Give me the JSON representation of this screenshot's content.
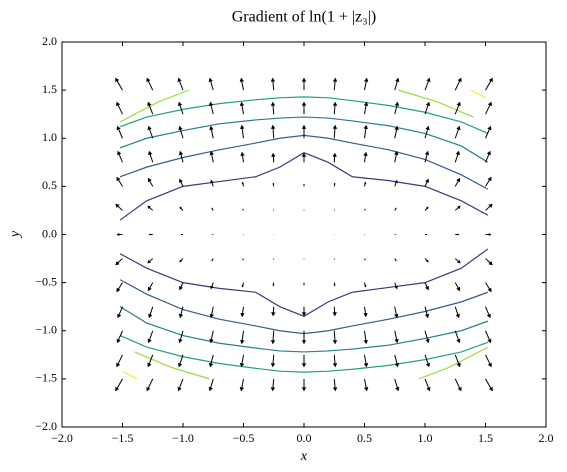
{
  "chart_data": {
    "type": "quiver",
    "title": "Gradient of ln(1 + |z₃|)",
    "xlabel": "x",
    "ylabel": "y",
    "xlim": [
      -2,
      2
    ],
    "ylim": [
      -2,
      2
    ],
    "xticks": [
      {
        "value": -2,
        "label": "−2.0"
      },
      {
        "value": -1.5,
        "label": "−1.5"
      },
      {
        "value": -1,
        "label": "−1.0"
      },
      {
        "value": -0.5,
        "label": "−0.5"
      },
      {
        "value": 0,
        "label": "0.0"
      },
      {
        "value": 0.5,
        "label": "0.5"
      },
      {
        "value": 1,
        "label": "1.0"
      },
      {
        "value": 1.5,
        "label": "1.5"
      },
      {
        "value": 2,
        "label": "2.0"
      }
    ],
    "yticks": [
      {
        "value": -2,
        "label": "−2.0"
      },
      {
        "value": -1.5,
        "label": "−1.5"
      },
      {
        "value": -1,
        "label": "−1.0"
      },
      {
        "value": -0.5,
        "label": "−0.5"
      },
      {
        "value": 0,
        "label": "0.0"
      },
      {
        "value": 0.5,
        "label": "0.5"
      },
      {
        "value": 1,
        "label": "1.0"
      },
      {
        "value": 1.5,
        "label": "1.5"
      },
      {
        "value": 2,
        "label": "2.0"
      }
    ],
    "arrow_color": "#000000",
    "x": [
      -1.5,
      -1.25,
      -1,
      -0.75,
      -0.5,
      -0.25,
      0,
      0.25,
      0.5,
      0.75,
      1,
      1.25,
      1.5
    ],
    "y": [
      -1.5,
      -1.25,
      -1,
      -0.75,
      -0.5,
      -0.25,
      0,
      0.25,
      0.5,
      0.75,
      1,
      1.25,
      1.5
    ],
    "u": [
      [
        -0.06,
        -0.05,
        -0.04,
        -0.03,
        -0.02,
        -0.01,
        0,
        0.01,
        0.02,
        0.03,
        0.04,
        0.05,
        0.06
      ],
      [
        -0.05,
        -0.04,
        -0.035,
        -0.026,
        -0.018,
        -0.009,
        0,
        0.009,
        0.018,
        0.026,
        0.035,
        0.04,
        0.05
      ],
      [
        -0.045,
        -0.037,
        -0.03,
        -0.022,
        -0.015,
        -0.008,
        0,
        0.008,
        0.015,
        0.022,
        0.03,
        0.037,
        0.045
      ],
      [
        -0.04,
        -0.031,
        -0.025,
        -0.019,
        -0.013,
        -0.006,
        0,
        0.006,
        0.013,
        0.019,
        0.025,
        0.031,
        0.04
      ],
      [
        -0.05,
        -0.04,
        -0.03,
        -0.02,
        -0.01,
        -0.005,
        0,
        0.005,
        0.01,
        0.02,
        0.03,
        0.04,
        0.05
      ],
      [
        -0.06,
        -0.045,
        -0.03,
        -0.015,
        -0.008,
        -0.004,
        0,
        0.004,
        0.008,
        0.015,
        0.03,
        0.045,
        0.06
      ],
      [
        -0.05,
        -0.035,
        -0.02,
        -0.01,
        -0.005,
        -0.002,
        0,
        0.002,
        0.005,
        0.01,
        0.02,
        0.035,
        0.05
      ],
      [
        -0.06,
        -0.045,
        -0.03,
        -0.015,
        -0.008,
        -0.004,
        0,
        0.004,
        0.008,
        0.015,
        0.03,
        0.045,
        0.06
      ],
      [
        -0.05,
        -0.04,
        -0.03,
        -0.02,
        -0.01,
        -0.005,
        0,
        0.005,
        0.01,
        0.02,
        0.03,
        0.04,
        0.05
      ],
      [
        -0.04,
        -0.031,
        -0.025,
        -0.019,
        -0.013,
        -0.006,
        0,
        0.006,
        0.013,
        0.019,
        0.025,
        0.031,
        0.04
      ],
      [
        -0.045,
        -0.037,
        -0.03,
        -0.022,
        -0.015,
        -0.008,
        0,
        0.008,
        0.015,
        0.022,
        0.03,
        0.037,
        0.045
      ],
      [
        -0.05,
        -0.04,
        -0.035,
        -0.026,
        -0.018,
        -0.009,
        0,
        0.009,
        0.018,
        0.026,
        0.035,
        0.04,
        0.05
      ],
      [
        -0.06,
        -0.05,
        -0.04,
        -0.03,
        -0.02,
        -0.01,
        0,
        0.01,
        0.02,
        0.03,
        0.04,
        0.05,
        0.06
      ]
    ],
    "v": [
      [
        -0.13,
        -0.13,
        -0.13,
        -0.13,
        -0.13,
        -0.13,
        -0.13,
        -0.13,
        -0.13,
        -0.13,
        -0.13,
        -0.13,
        -0.13
      ],
      [
        -0.13,
        -0.13,
        -0.13,
        -0.13,
        -0.13,
        -0.13,
        -0.13,
        -0.13,
        -0.13,
        -0.13,
        -0.13,
        -0.13,
        -0.13
      ],
      [
        -0.13,
        -0.13,
        -0.13,
        -0.13,
        -0.14,
        -0.14,
        -0.14,
        -0.14,
        -0.14,
        -0.13,
        -0.13,
        -0.13,
        -0.13
      ],
      [
        -0.12,
        -0.12,
        -0.12,
        -0.12,
        -0.11,
        -0.1,
        -0.1,
        -0.1,
        -0.11,
        -0.12,
        -0.12,
        -0.12,
        -0.12
      ],
      [
        -0.1,
        -0.09,
        -0.08,
        -0.07,
        -0.05,
        -0.04,
        -0.03,
        -0.04,
        -0.05,
        -0.07,
        -0.08,
        -0.09,
        -0.1
      ],
      [
        -0.07,
        -0.05,
        -0.04,
        -0.03,
        -0.02,
        -0.01,
        -0.01,
        -0.01,
        -0.02,
        -0.03,
        -0.04,
        -0.05,
        -0.07
      ],
      [
        0,
        0,
        0,
        0,
        0,
        0,
        0,
        0,
        0,
        0,
        0,
        0,
        0
      ],
      [
        0.07,
        0.05,
        0.04,
        0.03,
        0.02,
        0.01,
        0.01,
        0.01,
        0.02,
        0.03,
        0.04,
        0.05,
        0.07
      ],
      [
        0.1,
        0.09,
        0.08,
        0.07,
        0.05,
        0.04,
        0.03,
        0.04,
        0.05,
        0.07,
        0.08,
        0.09,
        0.1
      ],
      [
        0.12,
        0.12,
        0.12,
        0.12,
        0.11,
        0.1,
        0.1,
        0.1,
        0.11,
        0.12,
        0.12,
        0.12,
        0.12
      ],
      [
        0.13,
        0.13,
        0.13,
        0.13,
        0.14,
        0.14,
        0.14,
        0.14,
        0.14,
        0.13,
        0.13,
        0.13,
        0.13
      ],
      [
        0.13,
        0.13,
        0.13,
        0.13,
        0.13,
        0.13,
        0.13,
        0.13,
        0.13,
        0.13,
        0.13,
        0.13,
        0.13
      ],
      [
        0.13,
        0.13,
        0.13,
        0.13,
        0.13,
        0.13,
        0.13,
        0.13,
        0.13,
        0.13,
        0.13,
        0.13,
        0.13
      ]
    ],
    "contours": [
      {
        "color": "#46327e",
        "x": [
          -1.52,
          -1.3,
          -1.0,
          -0.7,
          -0.4,
          -0.2,
          0,
          0.2,
          0.4,
          0.7,
          1.0,
          1.3,
          1.52
        ],
        "y": [
          0.15,
          0.35,
          0.5,
          0.55,
          0.6,
          0.7,
          0.85,
          0.75,
          0.6,
          0.56,
          0.5,
          0.35,
          0.2
        ]
      },
      {
        "color": "#365c8d",
        "x": [
          -1.52,
          -1.3,
          -1.0,
          -0.7,
          -0.4,
          -0.2,
          0,
          0.2,
          0.4,
          0.7,
          1.0,
          1.3,
          1.52
        ],
        "y": [
          0.6,
          0.7,
          0.8,
          0.88,
          0.95,
          1.0,
          1.03,
          1.0,
          0.95,
          0.88,
          0.78,
          0.62,
          0.47
        ]
      },
      {
        "color": "#277f8e",
        "x": [
          -1.52,
          -1.3,
          -1.0,
          -0.7,
          -0.4,
          -0.2,
          0,
          0.2,
          0.4,
          0.7,
          1.0,
          1.3,
          1.52
        ],
        "y": [
          0.9,
          1.0,
          1.08,
          1.15,
          1.19,
          1.21,
          1.22,
          1.21,
          1.18,
          1.13,
          1.05,
          0.92,
          0.75
        ]
      },
      {
        "color": "#1fa187",
        "x": [
          -1.52,
          -1.3,
          -1.0,
          -0.7,
          -0.4,
          -0.2,
          0,
          0.2,
          0.4,
          0.7,
          1.0,
          1.3,
          1.52
        ],
        "y": [
          1.12,
          1.22,
          1.3,
          1.36,
          1.4,
          1.42,
          1.43,
          1.42,
          1.39,
          1.34,
          1.27,
          1.17,
          1.05
        ]
      },
      {
        "color": "#9fda3a",
        "x": [
          -1.52,
          -1.2,
          -0.95
        ],
        "y": [
          1.17,
          1.38,
          1.5
        ]
      },
      {
        "color": "#9fda3a",
        "x": [
          0.78,
          1.1,
          1.4
        ],
        "y": [
          1.5,
          1.38,
          1.22
        ]
      },
      {
        "color": "#fde725",
        "x": [
          1.38,
          1.5
        ],
        "y": [
          1.5,
          1.42
        ]
      },
      {
        "color": "#46327e",
        "x": [
          -1.52,
          -1.3,
          -1.0,
          -0.7,
          -0.4,
          -0.2,
          0,
          0.2,
          0.4,
          0.7,
          1.0,
          1.3,
          1.52
        ],
        "y": [
          -0.2,
          -0.35,
          -0.5,
          -0.56,
          -0.6,
          -0.75,
          -0.85,
          -0.7,
          -0.6,
          -0.55,
          -0.5,
          -0.35,
          -0.15
        ]
      },
      {
        "color": "#365c8d",
        "x": [
          -1.52,
          -1.3,
          -1.0,
          -0.7,
          -0.4,
          -0.2,
          0,
          0.2,
          0.4,
          0.7,
          1.0,
          1.3,
          1.52
        ],
        "y": [
          -0.47,
          -0.62,
          -0.78,
          -0.88,
          -0.95,
          -1.0,
          -1.03,
          -1.0,
          -0.95,
          -0.88,
          -0.8,
          -0.7,
          -0.6
        ]
      },
      {
        "color": "#277f8e",
        "x": [
          -1.52,
          -1.3,
          -1.0,
          -0.7,
          -0.4,
          -0.2,
          0,
          0.2,
          0.4,
          0.7,
          1.0,
          1.3,
          1.52
        ],
        "y": [
          -0.75,
          -0.92,
          -1.05,
          -1.13,
          -1.18,
          -1.21,
          -1.22,
          -1.21,
          -1.19,
          -1.15,
          -1.08,
          -1.0,
          -0.9
        ]
      },
      {
        "color": "#1fa187",
        "x": [
          -1.52,
          -1.3,
          -1.0,
          -0.7,
          -0.4,
          -0.2,
          0,
          0.2,
          0.4,
          0.7,
          1.0,
          1.3,
          1.52
        ],
        "y": [
          -1.05,
          -1.17,
          -1.27,
          -1.34,
          -1.39,
          -1.42,
          -1.43,
          -1.42,
          -1.4,
          -1.36,
          -1.3,
          -1.22,
          -1.12
        ]
      },
      {
        "color": "#9fda3a",
        "x": [
          -1.4,
          -1.1,
          -0.78
        ],
        "y": [
          -1.22,
          -1.38,
          -1.5
        ]
      },
      {
        "color": "#9fda3a",
        "x": [
          0.95,
          1.2,
          1.52
        ],
        "y": [
          -1.5,
          -1.38,
          -1.17
        ]
      },
      {
        "color": "#fde725",
        "x": [
          -1.5,
          -1.38
        ],
        "y": [
          -1.42,
          -1.5
        ]
      }
    ]
  }
}
